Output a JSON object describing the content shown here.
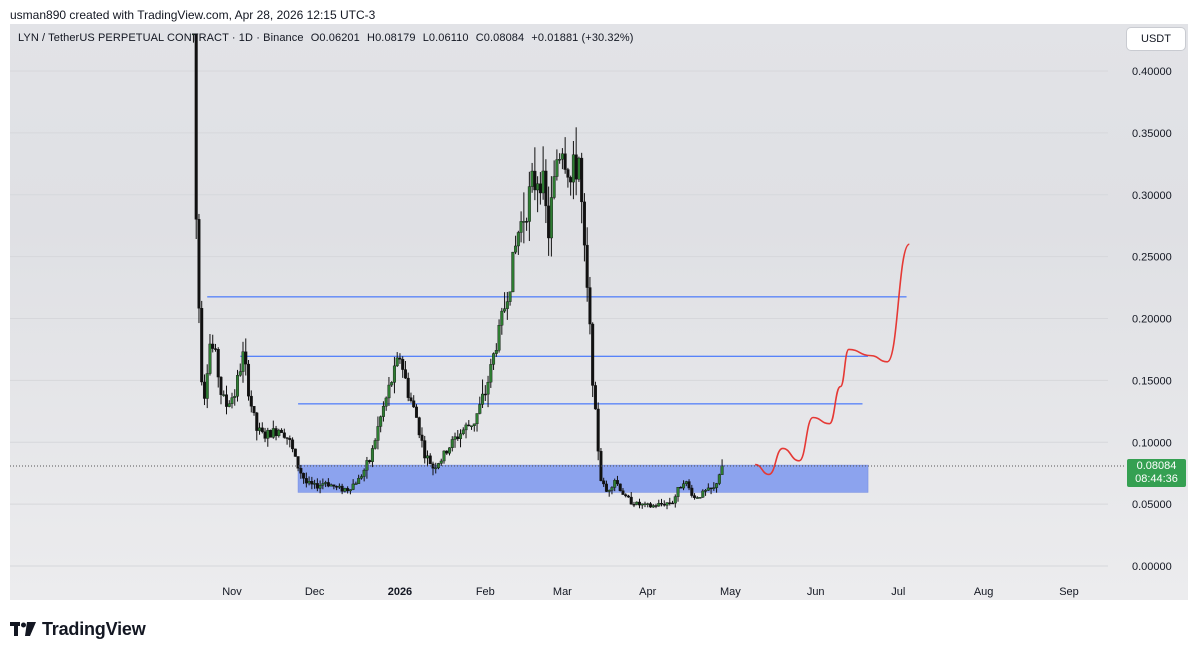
{
  "header": {
    "credit": "usman890 created with TradingView.com, Apr 28, 2026 12:15 UTC-3"
  },
  "legend": {
    "symbol": "LYN / TetherUS PERPETUAL CONTRACT · 1D · Binance",
    "open": "O0.06201",
    "high": "H0.08179",
    "low": "L0.06110",
    "close": "C0.08084",
    "change": "+0.01881 (+30.32%)"
  },
  "currency_button": "USDT",
  "price_tag": {
    "price": "0.08084",
    "countdown": "08:44:36",
    "color": "#35a052"
  },
  "footer": {
    "brand": "TradingView"
  },
  "chart_data": {
    "type": "candlestick",
    "ylim": [
      0,
      0.42
    ],
    "y_ticks": [
      "0.40000",
      "0.35000",
      "0.30000",
      "0.25000",
      "0.20000",
      "0.15000",
      "0.10000",
      "0.05000",
      "0.00000"
    ],
    "y_tick_values": [
      0.4,
      0.35,
      0.3,
      0.25,
      0.2,
      0.15,
      0.1,
      0.05,
      0.0
    ],
    "x_ticks": [
      "Nov",
      "Dec",
      "2026",
      "Feb",
      "Mar",
      "Apr",
      "May",
      "Jun",
      "Jul",
      "Aug",
      "Sep"
    ],
    "x_tick_dates": [
      "2025-11-01",
      "2025-12-01",
      "2026-01-01",
      "2026-02-01",
      "2026-03-01",
      "2026-04-01",
      "2026-05-01",
      "2026-06-01",
      "2026-07-01",
      "2026-08-01",
      "2026-09-01"
    ],
    "bold_ticks": [
      "2026"
    ],
    "last_price": 0.08084,
    "price_series": [
      [
        "2025-10-18",
        0.43
      ],
      [
        "2025-10-19",
        0.28
      ],
      [
        "2025-10-20",
        0.21
      ],
      [
        "2025-10-21",
        0.155
      ],
      [
        "2025-10-22",
        0.14
      ],
      [
        "2025-10-24",
        0.18
      ],
      [
        "2025-10-26",
        0.17
      ],
      [
        "2025-10-28",
        0.14
      ],
      [
        "2025-10-30",
        0.13
      ],
      [
        "2025-11-02",
        0.14
      ],
      [
        "2025-11-05",
        0.17
      ],
      [
        "2025-11-08",
        0.13
      ],
      [
        "2025-11-10",
        0.11
      ],
      [
        "2025-11-13",
        0.105
      ],
      [
        "2025-11-16",
        0.108
      ],
      [
        "2025-11-19",
        0.112
      ],
      [
        "2025-11-22",
        0.1
      ],
      [
        "2025-11-25",
        0.08
      ],
      [
        "2025-11-28",
        0.067
      ],
      [
        "2025-12-01",
        0.064
      ],
      [
        "2025-12-05",
        0.068
      ],
      [
        "2025-12-09",
        0.063
      ],
      [
        "2025-12-13",
        0.062
      ],
      [
        "2025-12-17",
        0.07
      ],
      [
        "2025-12-21",
        0.085
      ],
      [
        "2025-12-25",
        0.12
      ],
      [
        "2025-12-29",
        0.15
      ],
      [
        "2026-01-01",
        0.17
      ],
      [
        "2026-01-04",
        0.14
      ],
      [
        "2026-01-07",
        0.12
      ],
      [
        "2026-01-10",
        0.09
      ],
      [
        "2026-01-13",
        0.08
      ],
      [
        "2026-01-16",
        0.086
      ],
      [
        "2026-01-20",
        0.1
      ],
      [
        "2026-01-24",
        0.11
      ],
      [
        "2026-01-28",
        0.117
      ],
      [
        "2026-02-01",
        0.14
      ],
      [
        "2026-02-05",
        0.18
      ],
      [
        "2026-02-09",
        0.22
      ],
      [
        "2026-02-13",
        0.27
      ],
      [
        "2026-02-17",
        0.3
      ],
      [
        "2026-02-21",
        0.32
      ],
      [
        "2026-02-24",
        0.27
      ],
      [
        "2026-02-27",
        0.33
      ],
      [
        "2026-03-01",
        0.34
      ],
      [
        "2026-03-04",
        0.31
      ],
      [
        "2026-03-07",
        0.33
      ],
      [
        "2026-03-09",
        0.25
      ],
      [
        "2026-03-11",
        0.19
      ],
      [
        "2026-03-13",
        0.12
      ],
      [
        "2026-03-15",
        0.07
      ],
      [
        "2026-03-17",
        0.06
      ],
      [
        "2026-03-20",
        0.07
      ],
      [
        "2026-03-24",
        0.055
      ],
      [
        "2026-03-28",
        0.05
      ],
      [
        "2026-04-02",
        0.048
      ],
      [
        "2026-04-06",
        0.05
      ],
      [
        "2026-04-10",
        0.052
      ],
      [
        "2026-04-14",
        0.07
      ],
      [
        "2026-04-18",
        0.055
      ],
      [
        "2026-04-22",
        0.06
      ],
      [
        "2026-04-25",
        0.062
      ],
      [
        "2026-04-28",
        0.08084
      ]
    ],
    "horizontal_lines": [
      {
        "price": 0.2175,
        "from": "2025-10-23",
        "to": "2026-07-04",
        "color": "#2962ff"
      },
      {
        "price": 0.1695,
        "from": "2025-11-04",
        "to": "2026-06-20",
        "color": "#2962ff"
      },
      {
        "price": 0.131,
        "from": "2025-11-25",
        "to": "2026-06-18",
        "color": "#2962ff"
      }
    ],
    "support_zone": {
      "from": "2025-11-25",
      "to": "2026-06-20",
      "top": 0.0815,
      "bottom": 0.0595,
      "color": "#5b7ff0"
    },
    "projection": {
      "color": "#e53935",
      "points": [
        [
          "2026-05-10",
          0.082
        ],
        [
          "2026-05-15",
          0.074
        ],
        [
          "2026-05-20",
          0.095
        ],
        [
          "2026-05-26",
          0.085
        ],
        [
          "2026-05-31",
          0.12
        ],
        [
          "2026-06-06",
          0.115
        ],
        [
          "2026-06-10",
          0.145
        ],
        [
          "2026-06-13",
          0.175
        ],
        [
          "2026-06-21",
          0.17
        ],
        [
          "2026-06-27",
          0.165
        ],
        [
          "2026-07-05",
          0.26
        ]
      ]
    }
  }
}
